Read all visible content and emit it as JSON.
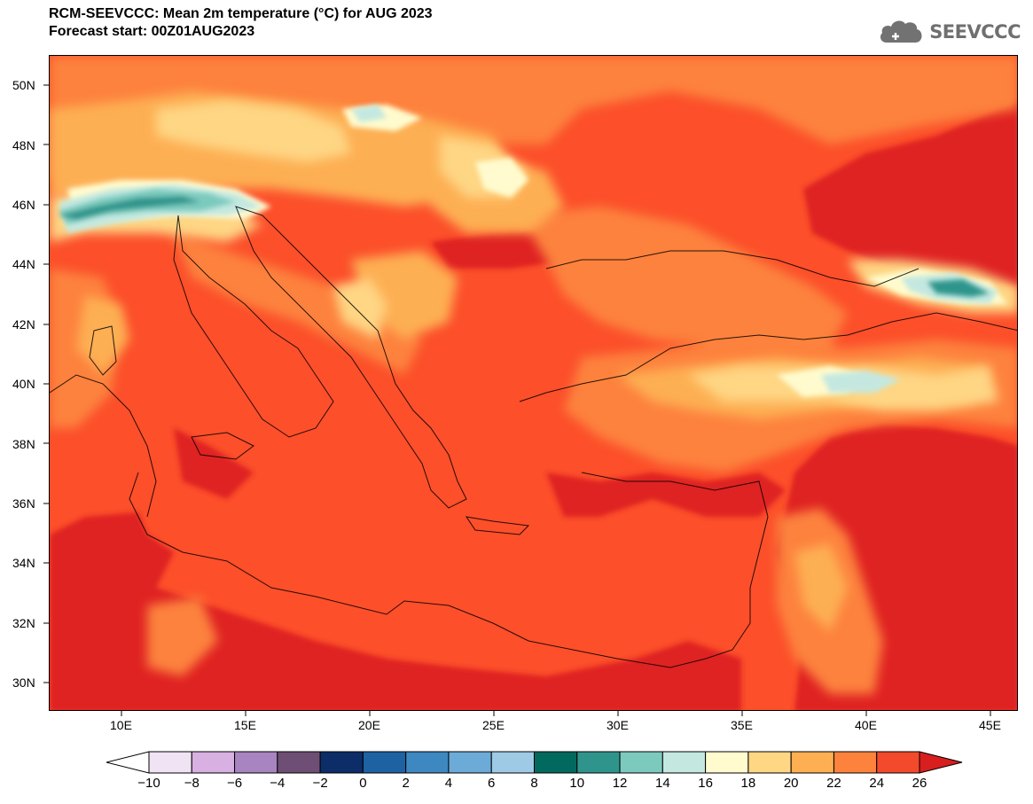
{
  "header": {
    "title": "RCM-SEEVCCC: Mean 2m temperature (°C) for AUG 2023",
    "subtitle": "Forecast start: 00Z01AUG2023"
  },
  "logo": {
    "text": "SEEVCCC",
    "icon": "cloud-icon"
  },
  "map": {
    "lon_range": [
      7,
      46
    ],
    "lat_range": [
      29,
      51
    ],
    "lon_ticks": [
      "10E",
      "15E",
      "20E",
      "25E",
      "30E",
      "35E",
      "40E",
      "45E"
    ],
    "lat_ticks": [
      "50N",
      "48N",
      "46N",
      "44N",
      "42N",
      "40N",
      "38N",
      "36N",
      "34N",
      "32N",
      "30N"
    ],
    "background_color": "#fc4f2a"
  },
  "colorbar": {
    "labels": [
      "-10",
      "-8",
      "-6",
      "-4",
      "-2",
      "0",
      "2",
      "4",
      "6",
      "8",
      "10",
      "12",
      "14",
      "16",
      "18",
      "20",
      "22",
      "24",
      "26"
    ],
    "colors": [
      "#ffffff",
      "#f0e4f4",
      "#d8b0e2",
      "#a884c0",
      "#6e4e74",
      "#0c2d68",
      "#1e62a4",
      "#3d88c0",
      "#6cabd8",
      "#9ecae6",
      "#02695e",
      "#2f958c",
      "#7ccabe",
      "#c4e8e0",
      "#fffbce",
      "#fed684",
      "#fdaf52",
      "#fd823c",
      "#f24a2a",
      "#d81e1e"
    ]
  }
}
